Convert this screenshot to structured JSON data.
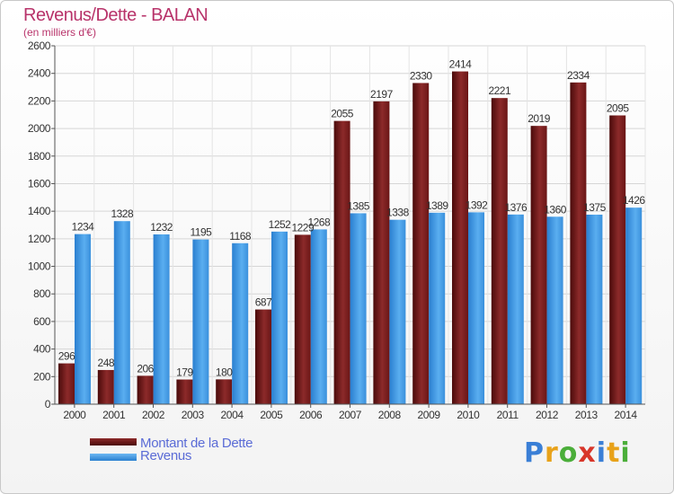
{
  "header": {
    "title": "Revenus/Dette - BALAN",
    "subtitle": "(en milliers d'€)"
  },
  "legend": {
    "dette": "Montant de la Dette",
    "revenus": "Revenus"
  },
  "logo": {
    "letters": [
      "P",
      "r",
      "o",
      "x",
      "i",
      "t",
      "i"
    ]
  },
  "colors": {
    "dette": "#7a1c1c",
    "revenus": "#3f95de",
    "title": "#b8336a",
    "legend_text": "#5a6bd6"
  },
  "chart_data": {
    "type": "bar",
    "title": "Revenus/Dette - BALAN",
    "subtitle": "(en milliers d'€)",
    "categories": [
      "2000",
      "2001",
      "2002",
      "2003",
      "2004",
      "2005",
      "2006",
      "2007",
      "2008",
      "2009",
      "2010",
      "2011",
      "2012",
      "2013",
      "2014"
    ],
    "series": [
      {
        "name": "Montant de la Dette",
        "values": [
          296,
          248,
          206,
          179,
          180,
          687,
          1229,
          2055,
          2197,
          2330,
          2414,
          2221,
          2019,
          2334,
          2095
        ]
      },
      {
        "name": "Revenus",
        "values": [
          1234,
          1328,
          1232,
          1195,
          1168,
          1252,
          1268,
          1385,
          1338,
          1389,
          1392,
          1376,
          1360,
          1375,
          1426
        ]
      }
    ],
    "ylim": [
      0,
      2600
    ],
    "yticks": [
      0,
      200,
      400,
      600,
      800,
      1000,
      1200,
      1400,
      1600,
      1800,
      2000,
      2200,
      2400,
      2600
    ],
    "grid": true,
    "legend_position": "bottom-left"
  }
}
